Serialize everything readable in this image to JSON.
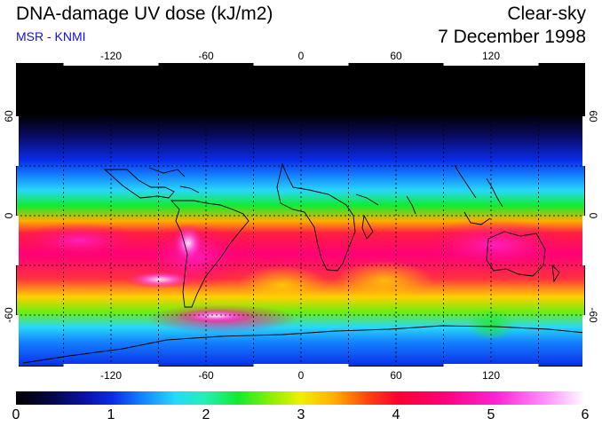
{
  "header": {
    "title": "DNA-damage UV dose (kJ/m2)",
    "subtitle": "MSR - KNMI",
    "condition": "Clear-sky",
    "date": "7 December 1998"
  },
  "map": {
    "lon_ticks": [
      "-120",
      "-60",
      "0",
      "60",
      "120"
    ],
    "lat_ticks_left": [
      "60",
      "0",
      "-60"
    ],
    "lat_ticks_right": [
      "60",
      "0",
      "-60"
    ]
  },
  "colorbar": {
    "labels": [
      "0",
      "1",
      "2",
      "3",
      "4",
      "5",
      "6"
    ]
  }
}
